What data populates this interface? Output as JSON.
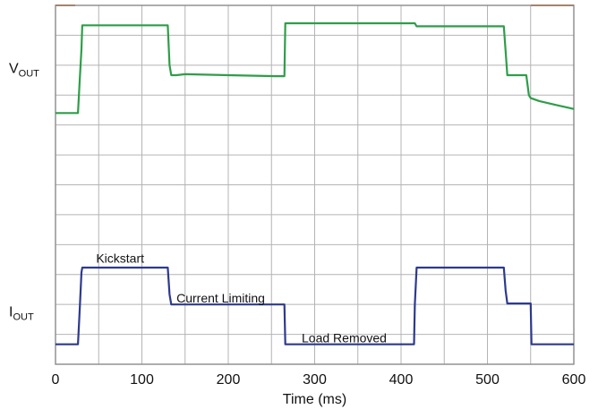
{
  "chart_data": {
    "type": "line",
    "xlabel": "Time (ms)",
    "xlim": [
      0,
      600
    ],
    "x_ticks": [
      "0",
      "100",
      "200",
      "300",
      "400",
      "500",
      "600"
    ],
    "grid": true,
    "divisions": {
      "x": 12,
      "y": 12
    },
    "annotations": [
      {
        "text": "Kickstart",
        "x": 47,
        "y": 10.6
      },
      {
        "text": "Current Limiting",
        "x": 140,
        "y": 8.6
      },
      {
        "text": "Load Removed",
        "x": 285,
        "y": 6.6
      }
    ],
    "series": [
      {
        "name": "VOUT",
        "ylabel": {
          "main": "V",
          "sub": "OUT"
        },
        "color": "#2e9e48",
        "points": [
          [
            0,
            18.1
          ],
          [
            26,
            18.1
          ],
          [
            28,
            19.7
          ],
          [
            30,
            21.3
          ],
          [
            31,
            22.5
          ],
          [
            110,
            22.5
          ],
          [
            130,
            22.5
          ],
          [
            132,
            20.5
          ],
          [
            134,
            20.0
          ],
          [
            140,
            20.0
          ],
          [
            150,
            20.05
          ],
          [
            200,
            20.0
          ],
          [
            255,
            19.95
          ],
          [
            265,
            19.95
          ],
          [
            266,
            22.6
          ],
          [
            410,
            22.6
          ],
          [
            416,
            22.6
          ],
          [
            418,
            22.45
          ],
          [
            519,
            22.45
          ],
          [
            521,
            21.2
          ],
          [
            523,
            20.0
          ],
          [
            545,
            20.0
          ],
          [
            548,
            19.0
          ],
          [
            550,
            18.85
          ],
          [
            560,
            18.7
          ],
          [
            580,
            18.5
          ],
          [
            600,
            18.3
          ]
        ]
      },
      {
        "name": "IOUT",
        "ylabel": {
          "main": "I",
          "sub": "OUT"
        },
        "color": "#2d3a8c",
        "points": [
          [
            0,
            6.5
          ],
          [
            26,
            6.5
          ],
          [
            28,
            8.2
          ],
          [
            30,
            10.1
          ],
          [
            31,
            10.35
          ],
          [
            130,
            10.35
          ],
          [
            132,
            9.0
          ],
          [
            134,
            8.5
          ],
          [
            200,
            8.5
          ],
          [
            265,
            8.5
          ],
          [
            266,
            6.5
          ],
          [
            415,
            6.5
          ],
          [
            416,
            8.5
          ],
          [
            418,
            10.35
          ],
          [
            519,
            10.35
          ],
          [
            521,
            9.2
          ],
          [
            523,
            8.55
          ],
          [
            550,
            8.55
          ],
          [
            551,
            6.5
          ],
          [
            600,
            6.5
          ]
        ]
      }
    ],
    "ylim": [
      5.5,
      23.5
    ]
  }
}
